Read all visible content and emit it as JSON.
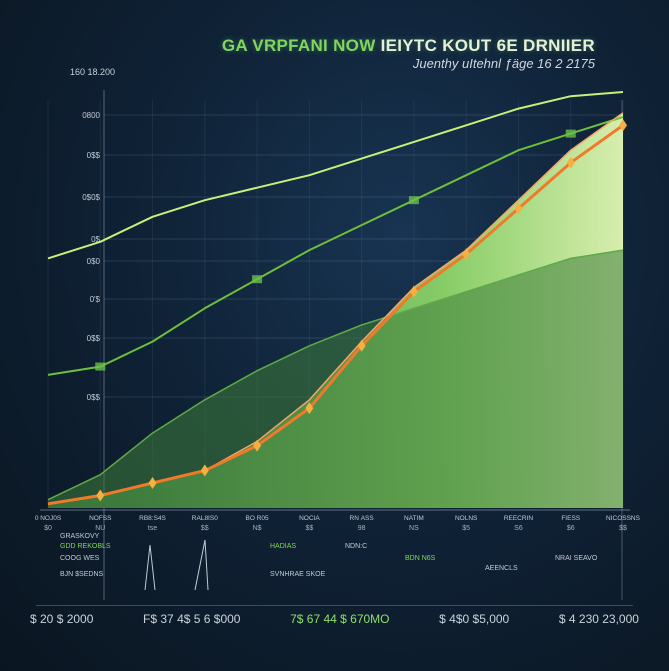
{
  "title_part1": "GA VRPFANI NOW",
  "title_part2": "IEIYTC KOUT 6E DRNIIER",
  "subtitle": "Juenthy uItehnl ƒäge 16 2 2175",
  "y_top_label": "160  18.200",
  "y_ticks": [
    "0800",
    "0$$",
    "0$0$",
    "0$",
    "0$0",
    "0'$",
    "0$$",
    "0$$"
  ],
  "x_ticks_top": [
    "0 NOJ0S",
    "NOFSS",
    "RB8:S4S",
    "RAL8IS0",
    "BO R05",
    "NOCIA",
    "RN ASS",
    "NATIM",
    "NOLNS",
    "REECRIN",
    "FIESS",
    "NICOSSNS"
  ],
  "x_ticks_bottom": [
    "$0",
    "NU",
    "tse",
    "$$",
    "N$",
    "$$",
    "98",
    "NS",
    "$5",
    "S6",
    "$6",
    "$$"
  ],
  "legend_notes": [
    "GRASKOVY",
    "GDD REKOBLS",
    "COOG WES",
    "BJN $SEDNS",
    "HADIAS",
    "SVNHRAE SKOE",
    "NDN:C",
    "BDN N6S",
    "AEENCLS",
    "NRAI SEAVO"
  ],
  "bottom_values": [
    "$ 20  $ 2000",
    "F$ 37 4$ 5 6 $000",
    "7$ 67 44 $ 670MO",
    "$ 4$0  $5,000",
    "$ 4 230  23,000"
  ],
  "colors": {
    "orange": "#f07a2a",
    "green_bright": "#c8ef7a",
    "green_mid": "#6fbf3a",
    "green_dark": "#2f6b3a",
    "area_light": "#d8f6a6",
    "area_dark": "#3f8a3c"
  },
  "chart_data": {
    "type": "area",
    "title": "GA VRPFANI NOW IEIYTC KOUT 6E DRNIIER",
    "subtitle": "Juenthy uItehnl ƒäge 16 2 2175",
    "xlabel": "",
    "ylabel": "",
    "categories": [
      "0 NOJ0S",
      "NOFSS",
      "RB8:S4S",
      "RAL8IS0",
      "BO R05",
      "NOCIA",
      "RN ASS",
      "NATIM",
      "NOLNS",
      "REECRIN",
      "FIESS",
      "NICOSSNS"
    ],
    "ylim": [
      0,
      100
    ],
    "grid": true,
    "series": [
      {
        "values": [
          1,
          3,
          6,
          9,
          15,
          24,
          39,
          52,
          61,
          72,
          83,
          92
        ]
      },
      {
        "values": [
          1,
          3,
          6,
          9,
          16,
          26,
          40,
          53,
          62,
          74,
          86,
          95
        ]
      },
      {
        "values": [
          32,
          34,
          40,
          48,
          55,
          62,
          68,
          74,
          80,
          86,
          90,
          94
        ]
      },
      {
        "values": [
          60,
          64,
          70,
          74,
          77,
          80,
          84,
          88,
          92,
          96,
          99,
          100
        ]
      },
      {
        "values": [
          2,
          8,
          18,
          26,
          33,
          39,
          44,
          48,
          52,
          56,
          60,
          62
        ]
      }
    ]
  }
}
